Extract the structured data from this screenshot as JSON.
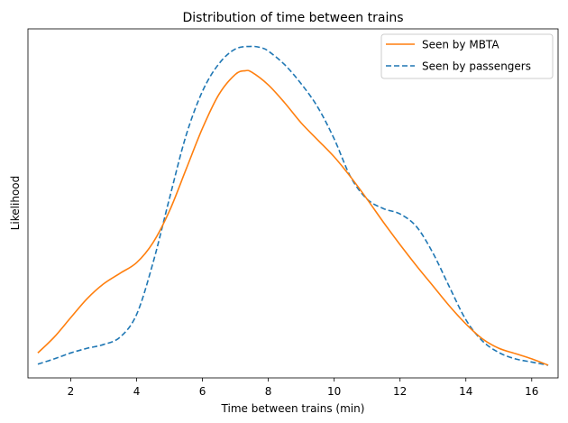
{
  "chart_data": {
    "type": "line",
    "title": "Distribution of time between trains",
    "xlabel": "Time between trains (min)",
    "ylabel": "Likelihood",
    "xlim": [
      0.7,
      16.8
    ],
    "ylim": [
      0.0,
      0.165
    ],
    "xticks": [
      2,
      4,
      6,
      8,
      10,
      12,
      14,
      16
    ],
    "yticks_visible": false,
    "grid": false,
    "legend_position": "top-right",
    "series": [
      {
        "name": "Seen by MBTA",
        "color": "#ff7f0e",
        "style": "solid",
        "x": [
          1.0,
          1.5,
          2.0,
          2.5,
          3.0,
          3.5,
          4.0,
          4.5,
          5.0,
          5.5,
          6.0,
          6.5,
          7.0,
          7.3,
          7.5,
          8.0,
          8.5,
          9.0,
          9.5,
          10.0,
          10.5,
          11.0,
          11.5,
          12.0,
          12.5,
          13.0,
          13.5,
          14.0,
          14.5,
          15.0,
          15.5,
          16.0,
          16.5
        ],
        "y": [
          0.0118,
          0.0193,
          0.0285,
          0.0375,
          0.0445,
          0.0495,
          0.0545,
          0.064,
          0.079,
          0.0985,
          0.118,
          0.134,
          0.1435,
          0.1452,
          0.1445,
          0.1385,
          0.13,
          0.1205,
          0.1125,
          0.1045,
          0.095,
          0.0845,
          0.0735,
          0.063,
          0.053,
          0.0435,
          0.034,
          0.0255,
          0.0185,
          0.014,
          0.0115,
          0.009,
          0.006
        ]
      },
      {
        "name": "Seen by passengers",
        "color": "#1f77b4",
        "style": "dashed",
        "x": [
          1.0,
          1.5,
          2.0,
          2.5,
          3.0,
          3.5,
          4.0,
          4.5,
          5.0,
          5.5,
          6.0,
          6.5,
          7.0,
          7.5,
          7.8,
          8.0,
          8.5,
          9.0,
          9.5,
          10.0,
          10.5,
          11.0,
          11.5,
          12.0,
          12.5,
          13.0,
          13.5,
          14.0,
          14.5,
          15.0,
          15.5,
          16.0,
          16.5
        ],
        "y": [
          0.0065,
          0.009,
          0.0118,
          0.014,
          0.0158,
          0.0193,
          0.03,
          0.0545,
          0.085,
          0.1145,
          0.1355,
          0.1485,
          0.1555,
          0.1567,
          0.156,
          0.1545,
          0.148,
          0.139,
          0.128,
          0.113,
          0.095,
          0.0845,
          0.08,
          0.0775,
          0.0715,
          0.059,
          0.043,
          0.0275,
          0.0175,
          0.012,
          0.009,
          0.0075,
          0.006
        ]
      }
    ]
  }
}
